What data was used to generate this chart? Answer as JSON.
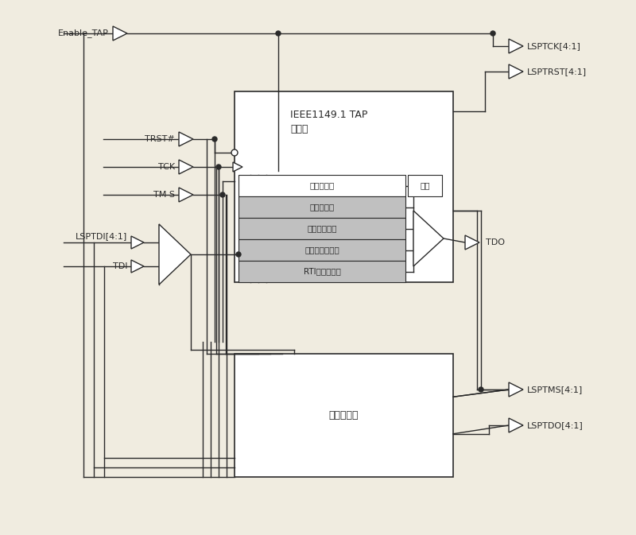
{
  "bg_color": "#f0ece0",
  "line_color": "#2a2a2a",
  "gray_fill": "#c0c0c0",
  "white_fill": "#ffffff",
  "light_gray": "#d8d8d8",
  "registers": [
    "指令寄存器",
    "旁路寄存器",
    "标识符寄存器",
    "链路控制寄存器",
    "RTI同步寄存器"
  ],
  "tap_label1": "IEEE1149.1 TAP",
  "tap_label2": "状态机",
  "chain_label": "链路链接器",
  "decode_label": "译码",
  "enable_tap": "Enable_TAP",
  "trst": "TRST#",
  "tck": "TCK",
  "tms": "TM S",
  "lsptdi": "LSPTDI[4:1]",
  "tdi": "TDI",
  "lsptck": "LSPTCK[4:1]",
  "lsptrst": "LSPTRST[4:1]",
  "tdo": "TDO",
  "lsptms": "LSPTMS[4:1]",
  "lsptdo": "LSPTDO[4:1]"
}
